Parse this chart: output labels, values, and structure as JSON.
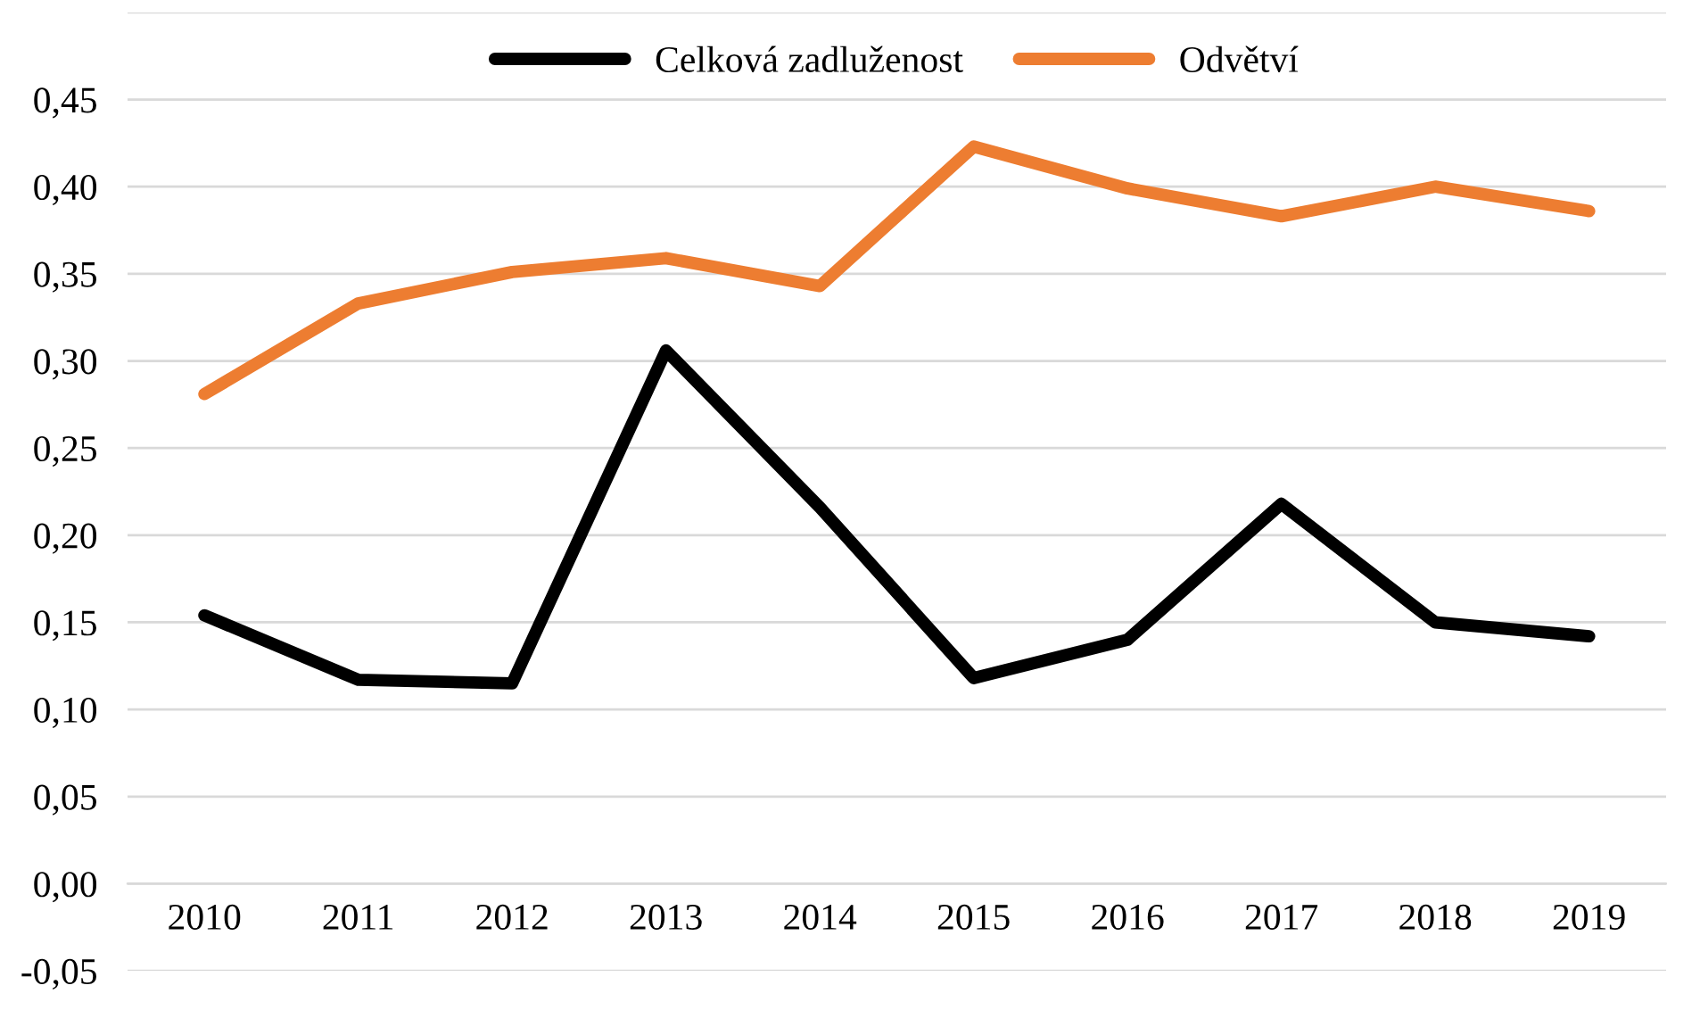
{
  "chart_data": {
    "type": "line",
    "categories": [
      "2010",
      "2011",
      "2012",
      "2013",
      "2014",
      "2015",
      "2016",
      "2017",
      "2018",
      "2019"
    ],
    "series": [
      {
        "name": "Celková zadluženost",
        "color": "#000000",
        "values": [
          0.154,
          0.117,
          0.115,
          0.306,
          0.216,
          0.118,
          0.14,
          0.218,
          0.15,
          0.142
        ]
      },
      {
        "name": "Odvětví",
        "color": "#ed7d31",
        "values": [
          0.281,
          0.333,
          0.351,
          0.359,
          0.343,
          0.423,
          0.399,
          0.383,
          0.4,
          0.386
        ]
      }
    ],
    "ylim": [
      -0.05,
      0.5
    ],
    "yticks": [
      {
        "value": -0.05,
        "label": "-0,05"
      },
      {
        "value": 0,
        "label": "0,00"
      },
      {
        "value": 0.05,
        "label": "0,05"
      },
      {
        "value": 0.1,
        "label": "0,10"
      },
      {
        "value": 0.15,
        "label": "0,15"
      },
      {
        "value": 0.2,
        "label": "0,20"
      },
      {
        "value": 0.25,
        "label": "0,25"
      },
      {
        "value": 0.3,
        "label": "0,30"
      },
      {
        "value": 0.35,
        "label": "0,35"
      },
      {
        "value": 0.4,
        "label": "0,40"
      },
      {
        "value": 0.45,
        "label": "0,45"
      },
      {
        "value": 0.5,
        "label": null
      }
    ],
    "grid": "y",
    "legend": "top",
    "marker": "none",
    "line_style": "solid"
  }
}
